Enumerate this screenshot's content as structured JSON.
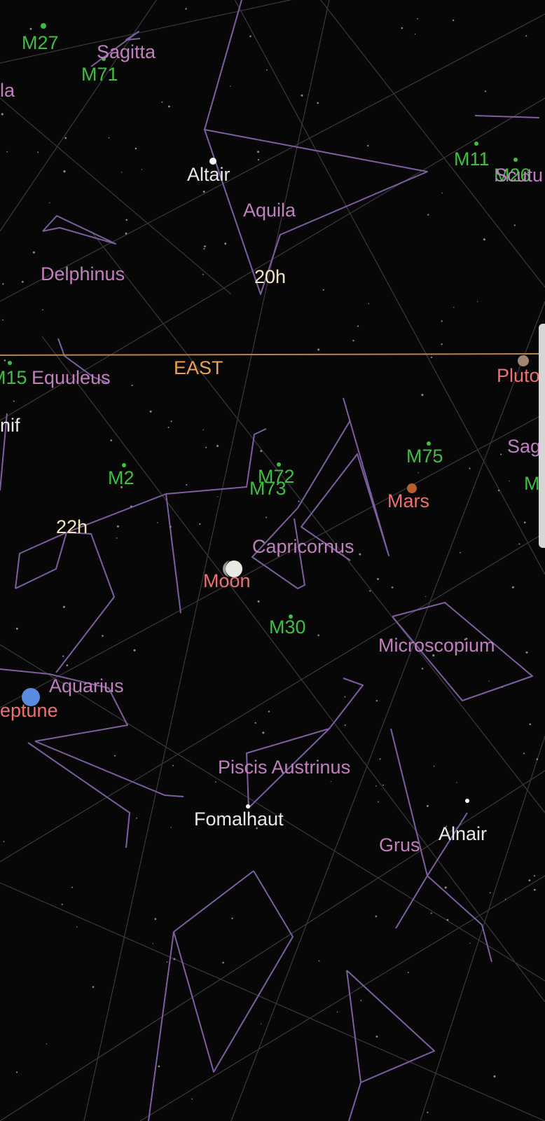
{
  "colors": {
    "background": "#070708",
    "constellation_line": "#7d5fa0",
    "constellation_label": "#c27fc0",
    "messier_label": "#3fbf3f",
    "star_label": "#e8e8e8",
    "planet_label": "#f07070",
    "grid_label": "#f4e6b8",
    "horizon": "#b8834a",
    "horizon_label": "#f0a050",
    "grid_line": "#3a3a3c"
  },
  "horizon": {
    "label": "EAST"
  },
  "grid_labels": {
    "ra_20h": "20h",
    "ra_22h": "22h"
  },
  "constellations": {
    "sagitta": "Sagitta",
    "aquila_partial": "la",
    "aquila": "Aquila",
    "delphinus": "Delphinus",
    "equuleus": "Equuleus",
    "capricornus": "Capricornus",
    "microscopium": "Microscopium",
    "aquarius": "Aquarius",
    "piscis_austrinus": "Piscis Austrinus",
    "grus": "Grus",
    "sagittarius_partial": "Sag"
  },
  "messier": {
    "m27": "M27",
    "m71": "M71",
    "m11": "M11",
    "m26": "M26",
    "m15": "M15",
    "m2": "M2",
    "m72": "M72",
    "m73": "M73",
    "m75": "M75",
    "m30": "M30",
    "m_partial": "M"
  },
  "overlap_label_scutum": "Scutu",
  "stars": {
    "altair": "Altair",
    "fomalhaut": "Fomalhaut",
    "alnair": "Alnair",
    "enif_partial": "nif"
  },
  "planets": {
    "moon": "Moon",
    "mars": "Mars",
    "neptune_partial": "leptune",
    "pluto_partial": "Pluto"
  }
}
